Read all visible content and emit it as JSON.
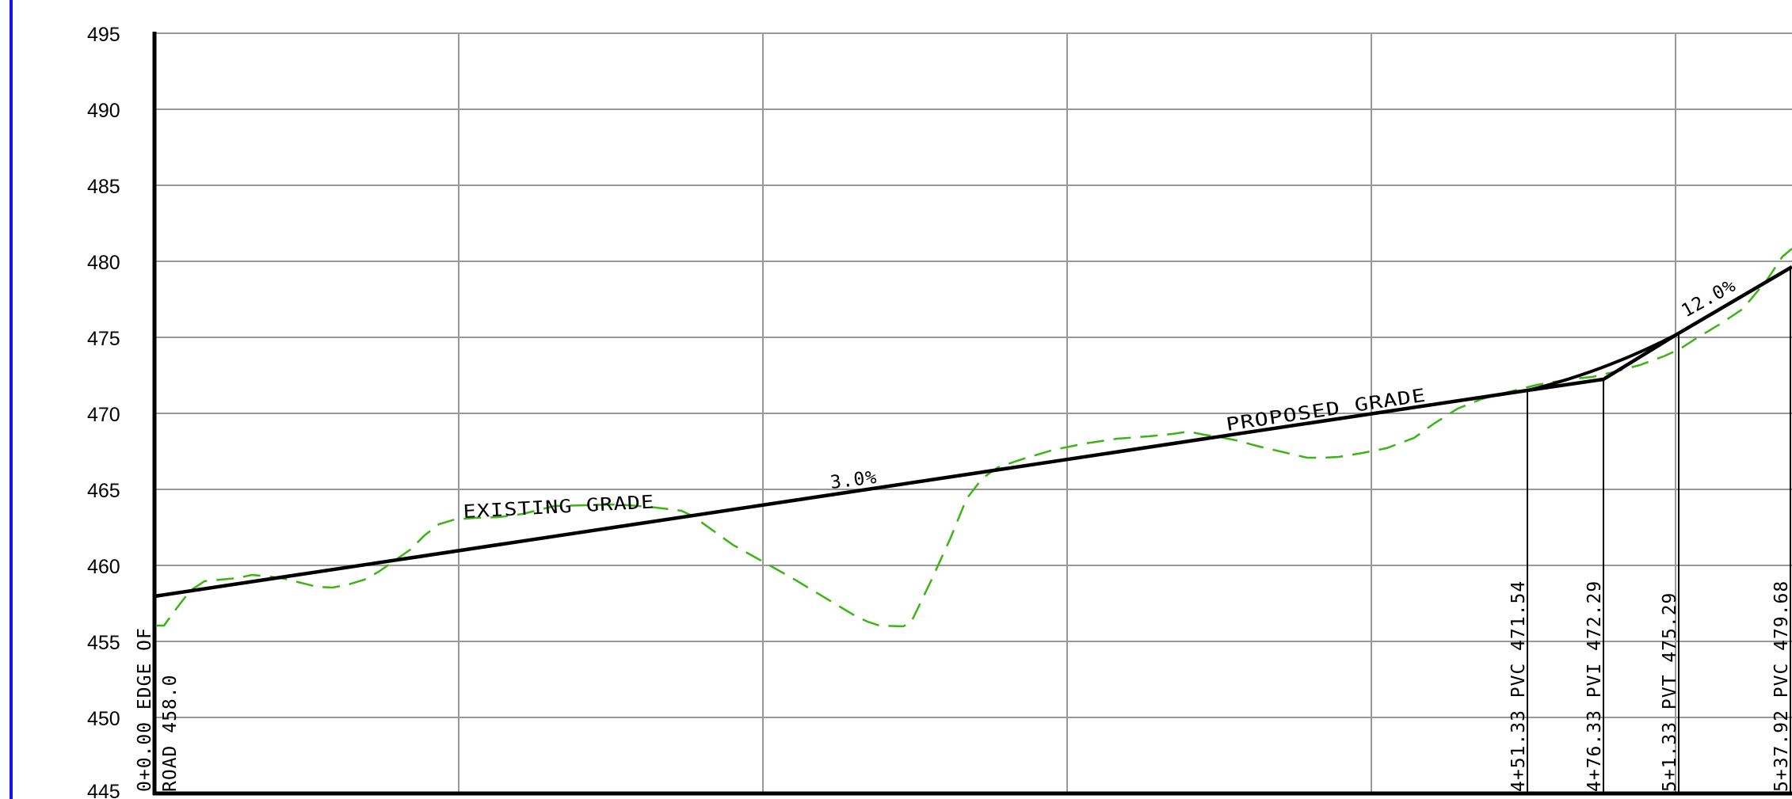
{
  "profile": {
    "y_ticks": [
      "445",
      "450",
      "455",
      "460",
      "465",
      "470",
      "475",
      "480",
      "485",
      "490",
      "495"
    ],
    "elevation_range": [
      445,
      495
    ],
    "grade_labels": {
      "existing": "EXISTING  GRADE",
      "proposed": "PROPOSED  GRADE",
      "slope_1": "3.0%",
      "slope_2": "12.0%"
    },
    "stations": {
      "start_station": "0+0.00  EDGE  OF",
      "start_elev": "ROAD  458.0",
      "pvc1": "4+51.33  PVC  471.54",
      "pvi": "4+76.33  PVI  472.29",
      "pvt": "5+1.33  PVT  475.29",
      "pvc2": "5+37.92  PVC  479.68"
    },
    "colors": {
      "frame_edge": "#1414e6",
      "existing_grade": "#3cb414",
      "proposed_grade": "#000000",
      "grid": "#999999"
    }
  }
}
